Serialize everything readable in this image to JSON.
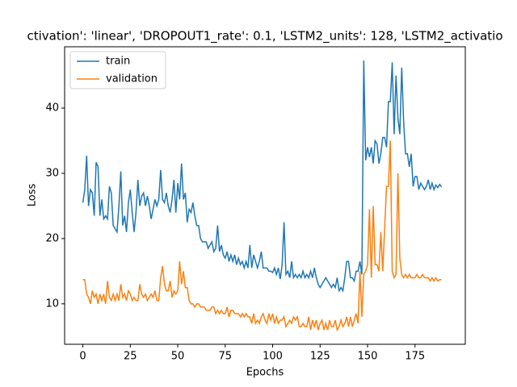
{
  "chart_data": {
    "type": "line",
    "title": "ctivation': 'linear', 'DROPOUT1_rate': 0.1, 'LSTM2_units': 128, 'LSTM2_activatio",
    "xlabel": "Epochs",
    "ylabel": "Loss",
    "x": [
      0,
      1,
      2,
      3,
      4,
      5,
      6,
      7,
      8,
      9,
      10,
      11,
      12,
      13,
      14,
      15,
      16,
      17,
      18,
      19,
      20,
      21,
      22,
      23,
      24,
      25,
      26,
      27,
      28,
      29,
      30,
      31,
      32,
      33,
      34,
      35,
      36,
      37,
      38,
      39,
      40,
      41,
      42,
      43,
      44,
      45,
      46,
      47,
      48,
      49,
      50,
      51,
      52,
      53,
      54,
      55,
      56,
      57,
      58,
      59,
      60,
      61,
      62,
      63,
      64,
      65,
      66,
      67,
      68,
      69,
      70,
      71,
      72,
      73,
      74,
      75,
      76,
      77,
      78,
      79,
      80,
      81,
      82,
      83,
      84,
      85,
      86,
      87,
      88,
      89,
      90,
      91,
      92,
      93,
      94,
      95,
      96,
      97,
      98,
      99,
      100,
      101,
      102,
      103,
      104,
      105,
      106,
      107,
      108,
      109,
      110,
      111,
      112,
      113,
      114,
      115,
      116,
      117,
      118,
      119,
      120,
      121,
      122,
      123,
      124,
      125,
      126,
      127,
      128,
      129,
      130,
      131,
      132,
      133,
      134,
      135,
      136,
      137,
      138,
      139,
      140,
      141,
      142,
      143,
      144,
      145,
      146,
      147,
      148,
      149,
      150,
      151,
      152,
      153,
      154,
      155,
      156,
      157,
      158,
      159,
      160,
      161,
      162,
      163,
      164,
      165,
      166,
      167,
      168,
      169,
      170,
      171,
      172,
      173,
      174,
      175,
      176,
      177,
      178,
      179,
      180,
      181,
      182,
      183,
      184,
      185,
      186,
      187,
      188,
      189
    ],
    "series": [
      {
        "name": "train",
        "color": "#1f77b4",
        "values": [
          25.5,
          27.5,
          32.7,
          25,
          27.5,
          27,
          23.5,
          31.7,
          31,
          23.5,
          26,
          23,
          23.5,
          23,
          28,
          27,
          22,
          21.5,
          21,
          25,
          30.3,
          22,
          23.5,
          21,
          25.5,
          27.5,
          24,
          21,
          24,
          29,
          25,
          26.5,
          27,
          25,
          26.5,
          25,
          23,
          24.5,
          26,
          25,
          26,
          30.5,
          26,
          25.5,
          27,
          25,
          24,
          26,
          29,
          24,
          28.5,
          26,
          31.5,
          26,
          27,
          22.5,
          24.5,
          24,
          25.5,
          23.5,
          22,
          22,
          20,
          19.5,
          19.5,
          19.5,
          18.5,
          19,
          19.5,
          18,
          18.5,
          22,
          18,
          19,
          17.5,
          17,
          18,
          16.5,
          17.5,
          16.5,
          17.5,
          16,
          17,
          16,
          16.5,
          15.5,
          16.5,
          15.5,
          19,
          15.5,
          17.5,
          16.5,
          15.5,
          16.5,
          18,
          15.5,
          15.5,
          15.5,
          15,
          15,
          14.8,
          15.5,
          14.5,
          15.5,
          13.8,
          16,
          22.5,
          14.5,
          15,
          14,
          16.5,
          14,
          14.5,
          14,
          14.5,
          14,
          15,
          14,
          14.5,
          14,
          15,
          14,
          15.5,
          14,
          13,
          12.5,
          13,
          13.5,
          14,
          13.5,
          13,
          12.5,
          13,
          12.5,
          14,
          12,
          12.5,
          12,
          14,
          16.5,
          16.5,
          14,
          14,
          13.5,
          15,
          15,
          16.5,
          14.5,
          47.3,
          32,
          34,
          32.5,
          34,
          31.5,
          35,
          34.5,
          31.5,
          33,
          35.5,
          35.5,
          34,
          41,
          41,
          47,
          36,
          45,
          38.5,
          36,
          46.2,
          38,
          33,
          33,
          31,
          33,
          28,
          29.5,
          29.5,
          27.5,
          28.5,
          28,
          27.5,
          28,
          29,
          27.5,
          28.5,
          27.5,
          28.2,
          27.8,
          28.3,
          27.9
        ]
      },
      {
        "name": "validation",
        "color": "#ff7f0e",
        "values": [
          13.7,
          13.7,
          11.5,
          11,
          10,
          12,
          11,
          11.5,
          10,
          11.5,
          10.5,
          11.5,
          10,
          13.5,
          11,
          10.5,
          11.5,
          10.5,
          11.5,
          10.5,
          13,
          11,
          11.5,
          10.5,
          12,
          11.5,
          10.5,
          11,
          10.5,
          10.5,
          13,
          11.5,
          11,
          11.5,
          10.5,
          11,
          11.5,
          11,
          12,
          10.5,
          10.5,
          14,
          15.8,
          13,
          12,
          12,
          13.5,
          11,
          12,
          11.5,
          12,
          16.5,
          13,
          15,
          12.5,
          12.5,
          10.5,
          10,
          10,
          9.5,
          10,
          10,
          9.5,
          9.5,
          9.5,
          9,
          9,
          9,
          9.5,
          9.5,
          8.5,
          9,
          8.5,
          9,
          8.5,
          8.5,
          9.5,
          8,
          9,
          9,
          8.5,
          8.5,
          8.5,
          8,
          8.5,
          8,
          8.5,
          8,
          8,
          7,
          8.5,
          7,
          7.5,
          7,
          8,
          8.5,
          7.5,
          7,
          8.5,
          7.5,
          8.5,
          7,
          8,
          7,
          7.5,
          7.5,
          8,
          6.5,
          7,
          7.5,
          7,
          8,
          7.5,
          8,
          6.5,
          6.5,
          7,
          6.5,
          6.5,
          8,
          6,
          7.5,
          6.5,
          7.5,
          6,
          7,
          7.5,
          6,
          7,
          6,
          7.5,
          6.5,
          6.5,
          7.5,
          6,
          6.5,
          7.5,
          6.5,
          7,
          8,
          6.5,
          8,
          6.5,
          7.5,
          8.5,
          7,
          15,
          8,
          14.5,
          15,
          16,
          24.5,
          14,
          25,
          16,
          16,
          15,
          21,
          15,
          21.5,
          28,
          28,
          35,
          15,
          14,
          14.5,
          30,
          17,
          14.5,
          14,
          14.5,
          14,
          14.5,
          14,
          14,
          14,
          14.5,
          14,
          14,
          14.5,
          14,
          14,
          14,
          13.5,
          14,
          13.5,
          14,
          13.5,
          13.7,
          13.7
        ]
      }
    ],
    "xlim": [
      -9.6,
      201.5
    ],
    "ylim": [
      3.8,
      49.4
    ],
    "xticks": [
      0,
      25,
      50,
      75,
      100,
      125,
      150,
      175
    ],
    "yticks": [
      10,
      20,
      30,
      40
    ],
    "legend": "upper left"
  }
}
